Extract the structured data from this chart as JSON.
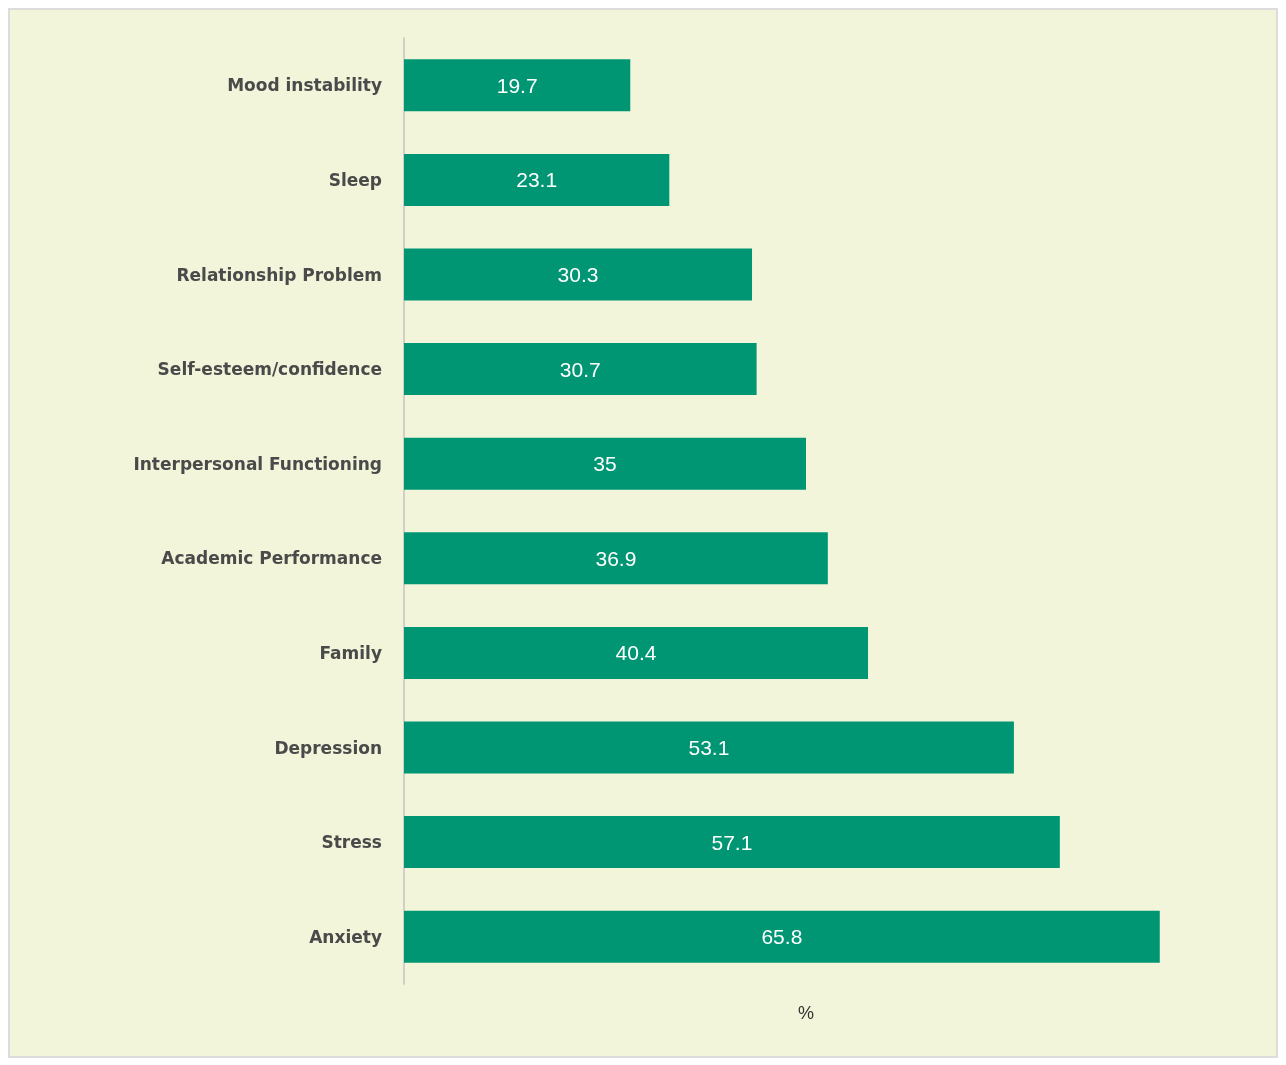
{
  "chart_data": {
    "type": "bar",
    "orientation": "horizontal",
    "xlabel": "%",
    "categories": [
      "Mood instability",
      "Sleep",
      "Relationship Problem",
      "Self-esteem/confidence",
      "Interpersonal Functioning",
      "Academic Performance",
      "Family",
      "Depression",
      "Stress",
      "Anxiety"
    ],
    "values": [
      19.7,
      23.1,
      30.3,
      30.7,
      35,
      36.9,
      40.4,
      53.1,
      57.1,
      65.8
    ],
    "color": "#009674",
    "data_labels": true,
    "tick_labels": "y"
  }
}
